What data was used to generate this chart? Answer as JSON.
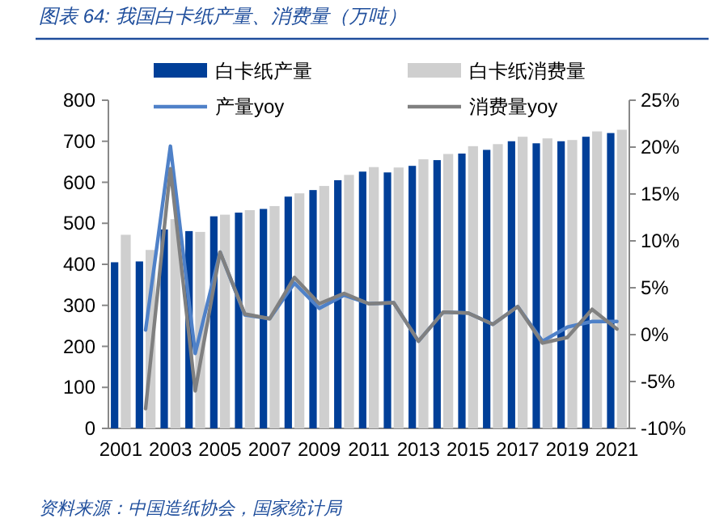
{
  "chart_data": {
    "type": "bar",
    "title": "图表 64: 我国白卡纸产量、消费量（万吨）",
    "categories": [
      "2001",
      null,
      "2003",
      null,
      "2005",
      null,
      "2007",
      null,
      "2009",
      null,
      "2011",
      null,
      "2013",
      null,
      "2015",
      null,
      "2017",
      null,
      "2019",
      null,
      "2021"
    ],
    "series": [
      {
        "name": "白卡纸产量",
        "color": "#003f98",
        "values": [
          405,
          407,
          485,
          481,
          517,
          526,
          535,
          565,
          581,
          605,
          626,
          624,
          640,
          654,
          670,
          679,
          700,
          695,
          700,
          711,
          720
        ]
      },
      {
        "name": "白卡纸消费量",
        "color": "#cfcfcf",
        "values": [
          472,
          435,
          510,
          479,
          521,
          532,
          542,
          573,
          591,
          618,
          637,
          636,
          656,
          669,
          688,
          693,
          711,
          707,
          703,
          724,
          728
        ]
      },
      {
        "name": "产量yoy",
        "color": "#4f81c8",
        "type": "line",
        "axis": "y2",
        "values": [
          null,
          0.5,
          20.1,
          -2.0,
          8.8,
          2.1,
          1.7,
          5.5,
          2.8,
          4.2,
          3.3,
          3.4,
          -0.7,
          2.4,
          2.3,
          1.1,
          3.0,
          -0.7,
          0.8,
          1.4,
          1.4
        ]
      },
      {
        "name": "消费量yoy",
        "color": "#808080",
        "type": "line",
        "axis": "y2",
        "values": [
          null,
          -7.9,
          17.7,
          -6.0,
          8.8,
          2.2,
          1.7,
          6.1,
          3.3,
          4.4,
          3.3,
          3.4,
          -0.7,
          2.4,
          2.3,
          1.1,
          3.0,
          -0.9,
          -0.3,
          2.7,
          0.6
        ]
      }
    ],
    "ylim": [
      0,
      800
    ],
    "yticks": [
      0,
      100,
      200,
      300,
      400,
      500,
      600,
      700,
      800
    ],
    "y2lim": [
      -10,
      25
    ],
    "y2ticks": [
      {
        "value": -10,
        "label": "-10%"
      },
      {
        "value": -5,
        "label": "-5%"
      },
      {
        "value": 0,
        "label": "0%"
      },
      {
        "value": 5,
        "label": "5%"
      },
      {
        "value": 10,
        "label": "10%"
      },
      {
        "value": 15,
        "label": "15%"
      },
      {
        "value": 20,
        "label": "20%"
      },
      {
        "value": 25,
        "label": "25%"
      }
    ],
    "grid": false,
    "legend": "top",
    "line_style": "solid",
    "marker": "none",
    "annotations": [
      "资料来源：中国造纸协会，国家统计局"
    ]
  }
}
